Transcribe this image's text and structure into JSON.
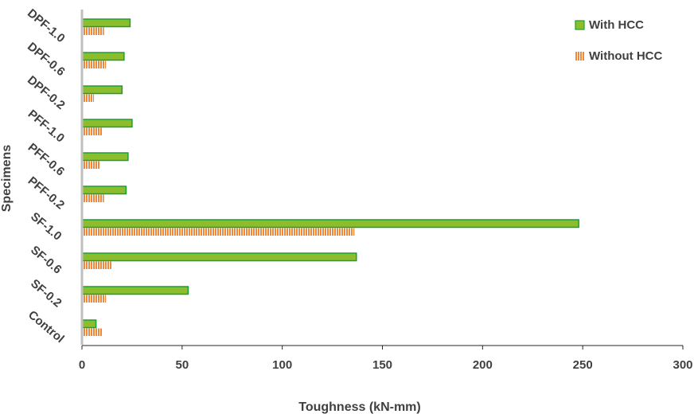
{
  "chart_data": {
    "type": "bar",
    "orientation": "horizontal",
    "categories": [
      "Control",
      "SF-0.2",
      "SF-0.6",
      "SF-1.0",
      "PFF-0.2",
      "PFF-0.6",
      "PFF-1.0",
      "DPF-0.2",
      "DPF-0.6",
      "DPF-1.0"
    ],
    "series": [
      {
        "name": "With HCC",
        "values": [
          7,
          53,
          137,
          248,
          22,
          23,
          25,
          20,
          21,
          24
        ],
        "color": "#8dbd2c",
        "edge": "#1aa032",
        "pattern": "solid"
      },
      {
        "name": "Without HCC",
        "values": [
          10,
          12,
          15,
          136,
          11,
          9,
          10,
          6,
          12,
          11
        ],
        "color": "#f0883c",
        "pattern": "vertical-stripes"
      }
    ],
    "xlabel": "Toughness (kN-mm)",
    "ylabel": "Specimens",
    "xlim": [
      0,
      300
    ],
    "xticks": [
      0,
      50,
      100,
      150,
      200,
      250,
      300
    ],
    "grid": false,
    "legend_position": "top-right"
  }
}
